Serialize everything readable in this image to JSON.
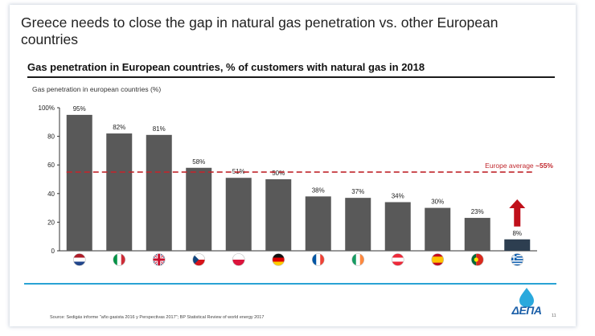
{
  "slide": {
    "title": "Greece needs to close the gap in natural gas penetration vs. other European countries",
    "subtitle": "Gas penetration in European countries, % of customers with natural gas in 2018",
    "source": "Source: Sedigás informe \"año gasista 2016 y Perspectivas 2017\"; BP Statistical Review of world energy 2017",
    "page_number": "11",
    "logo_text": "ΔΕΠΑ"
  },
  "chart_data": {
    "type": "bar",
    "title": "Gas penetration in european countries (%)",
    "categories": [
      "Netherlands",
      "Italy",
      "United Kingdom",
      "Czech Republic",
      "Poland",
      "Germany",
      "France",
      "Ireland",
      "Austria",
      "Spain",
      "Portugal",
      "Greece"
    ],
    "values": [
      95,
      82,
      81,
      58,
      51,
      50,
      38,
      37,
      34,
      30,
      23,
      8
    ],
    "value_labels": [
      "95%",
      "82%",
      "81%",
      "58%",
      "51%",
      "50%",
      "38%",
      "37%",
      "34%",
      "30%",
      "23%",
      "8%"
    ],
    "ylim": [
      0,
      100
    ],
    "yticks": [
      0,
      20,
      40,
      60,
      80,
      100
    ],
    "ytick_labels": [
      "0",
      "20",
      "40",
      "60",
      "80",
      "100%"
    ],
    "xlabel": "",
    "ylabel": "",
    "reference_line": {
      "value": 55,
      "label": "Europe average ~55%"
    },
    "colors": {
      "bar": "#595959",
      "highlight_bar": "#2d3e50",
      "average": "#c0272d",
      "arrow": "#c0101a"
    },
    "highlight_index": 11
  }
}
